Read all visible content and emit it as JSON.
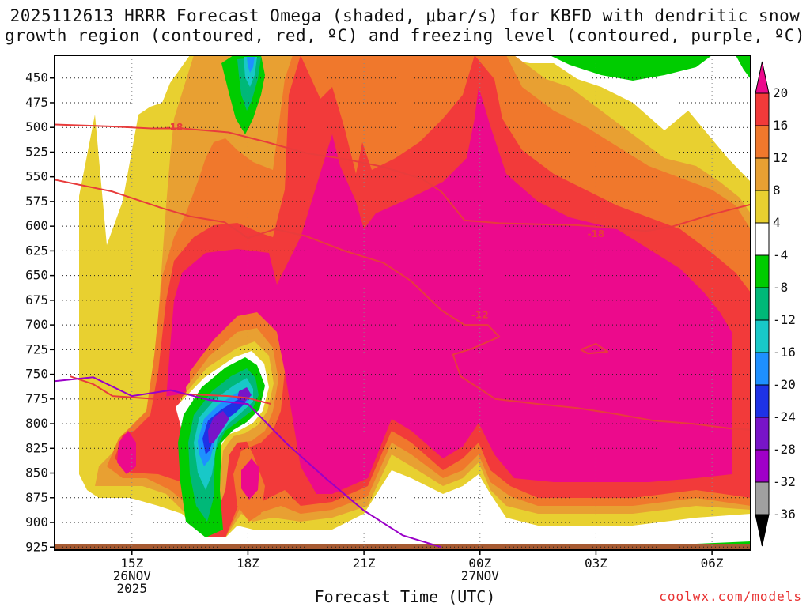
{
  "chart_data": {
    "type": "heatmap",
    "title_line1": "2025112613 HRRR Forecast Omega (shaded, μbar/s) for KBFD with dendritic snow",
    "title_line2": "growth region (contoured, red, ºC) and freezing level (contoured, purple, ºC)",
    "xlabel": "Forecast Time (UTC)",
    "ylabel": "",
    "credit": "coolwx.com/models",
    "x_range_hours": [
      13,
      31
    ],
    "x_ticks": [
      {
        "hour": 15,
        "label": "15Z",
        "sub1": "26NOV",
        "sub2": "2025"
      },
      {
        "hour": 18,
        "label": "18Z",
        "sub1": "",
        "sub2": ""
      },
      {
        "hour": 21,
        "label": "21Z",
        "sub1": "",
        "sub2": ""
      },
      {
        "hour": 24,
        "label": "00Z",
        "sub1": "27NOV",
        "sub2": ""
      },
      {
        "hour": 27,
        "label": "03Z",
        "sub1": "",
        "sub2": ""
      },
      {
        "hour": 30,
        "label": "06Z",
        "sub1": "",
        "sub2": ""
      }
    ],
    "y_range_hpa": [
      928,
      427
    ],
    "y_ticks": [
      450,
      475,
      500,
      525,
      550,
      575,
      600,
      625,
      650,
      675,
      700,
      725,
      750,
      775,
      800,
      825,
      850,
      875,
      900,
      925
    ],
    "colorbar": {
      "levels": [
        20,
        16,
        12,
        8,
        4,
        -4,
        -8,
        -12,
        -16,
        -20,
        -24,
        -28,
        -32,
        -36
      ],
      "colors": [
        "#ec0a8c",
        "#f23a3a",
        "#f0782c",
        "#e8a032",
        "#e8d030",
        "#ffffff",
        "#00cc00",
        "#00b878",
        "#18c8c8",
        "#1e90ff",
        "#1e32e6",
        "#7814c8",
        "#a000c8",
        "#a0a0a0",
        "#000000"
      ]
    },
    "contours": [
      {
        "name": "dgz-minus18-upper",
        "label": "-18",
        "color": "#e83c3c",
        "points": [
          [
            13,
            497
          ],
          [
            14.5,
            499
          ],
          [
            15.5,
            501
          ],
          [
            16.3,
            501
          ],
          [
            17.5,
            505
          ],
          [
            18.5,
            515
          ],
          [
            19.5,
            526
          ],
          [
            20.5,
            532
          ],
          [
            21.5,
            540
          ],
          [
            22.5,
            552
          ],
          [
            23,
            565
          ],
          [
            23.6,
            594
          ],
          [
            24.5,
            597
          ],
          [
            25.5,
            598
          ],
          [
            26.5,
            599
          ],
          [
            27.5,
            602
          ],
          [
            28.3,
            605
          ]
        ]
      },
      {
        "name": "dgz-minus18-lower",
        "label": "",
        "color": "#e83c3c",
        "points": [
          [
            28.3,
            605
          ],
          [
            29,
            600
          ],
          [
            30,
            588
          ],
          [
            31,
            578
          ]
        ]
      },
      {
        "name": "dgz-minus12-upper",
        "label": "",
        "color": "#e83c3c",
        "points": [
          [
            13,
            553
          ],
          [
            14.5,
            565
          ],
          [
            15.8,
            582
          ],
          [
            16.5,
            590
          ],
          [
            17.4,
            596
          ],
          [
            18,
            612
          ],
          [
            18.7,
            603
          ],
          [
            19.5,
            610
          ],
          [
            20.5,
            625
          ],
          [
            21.5,
            637
          ],
          [
            22.2,
            655
          ],
          [
            23,
            685
          ],
          [
            23.6,
            700
          ]
        ]
      },
      {
        "name": "dgz-minus12-label-seg",
        "label": "-12",
        "color": "#e83c3c",
        "points": [
          [
            23.6,
            700
          ],
          [
            24.2,
            700
          ],
          [
            24.5,
            712
          ],
          [
            23.8,
            724
          ],
          [
            23.3,
            730
          ],
          [
            23.5,
            752
          ],
          [
            24.4,
            775
          ],
          [
            25.5,
            780
          ],
          [
            26.5,
            784
          ],
          [
            27.5,
            790
          ],
          [
            28.5,
            797
          ],
          [
            29.5,
            800
          ],
          [
            30.5,
            805
          ],
          [
            31,
            806
          ]
        ]
      },
      {
        "name": "dgz-minus12-lower",
        "label": "",
        "color": "#e83c3c",
        "points": [
          [
            13.4,
            752
          ],
          [
            14,
            760
          ],
          [
            14.5,
            772
          ],
          [
            15.6,
            775
          ],
          [
            16.4,
            770
          ],
          [
            17.5,
            772
          ],
          [
            18,
            774
          ],
          [
            18.6,
            780
          ]
        ]
      },
      {
        "name": "dgz-small-loop",
        "label": "",
        "color": "#e83c3c",
        "points": [
          [
            26.6,
            725
          ],
          [
            27,
            719
          ],
          [
            27.3,
            727
          ],
          [
            26.8,
            729
          ],
          [
            26.6,
            725
          ]
        ]
      },
      {
        "name": "freezing-level",
        "label": "",
        "color": "#9a00c8",
        "points": [
          [
            13,
            757
          ],
          [
            14,
            753
          ],
          [
            15,
            772
          ],
          [
            16,
            766
          ],
          [
            17,
            776
          ],
          [
            18,
            780
          ],
          [
            19,
            820
          ],
          [
            20,
            855
          ],
          [
            21,
            888
          ],
          [
            22,
            913
          ],
          [
            23,
            925
          ]
        ]
      }
    ],
    "contour_labels": [
      {
        "text": "-18",
        "hour": 16.1,
        "hpa": 500,
        "color": "#e83c3c"
      },
      {
        "text": "-18",
        "hour": 27.0,
        "hpa": 608,
        "color": "#e83c3c"
      },
      {
        "text": "-12",
        "hour": 24.0,
        "hpa": 690,
        "color": "#e83c3c"
      }
    ]
  }
}
